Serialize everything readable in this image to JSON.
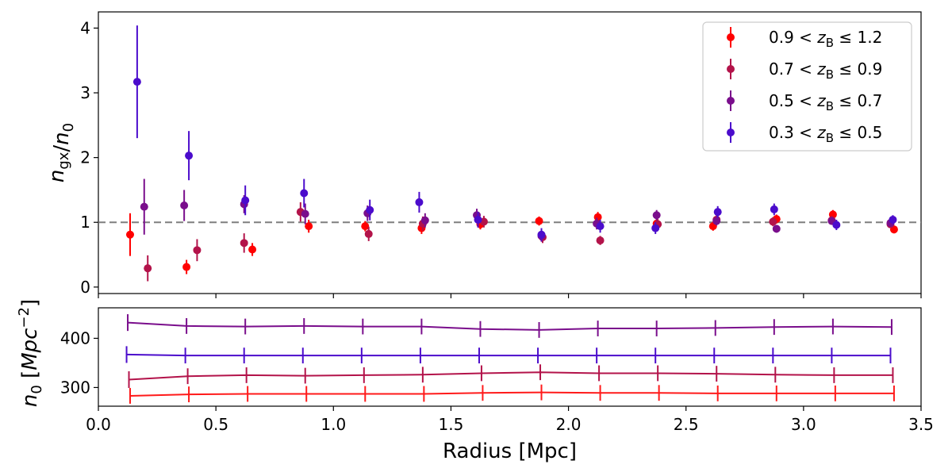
{
  "chart_data": [
    {
      "type": "scatter",
      "panel": "top",
      "title": "",
      "ylabel": "n_gx/n_0",
      "xlim": [
        0.0,
        3.5
      ],
      "ylim": [
        -0.1,
        4.25
      ],
      "yticks": [
        0,
        1,
        2,
        3,
        4
      ],
      "reference_line": {
        "y": 1.0,
        "style": "dashed",
        "color": "#7f7f7f"
      },
      "legend_placement": "top-right",
      "grid": false,
      "series": [
        {
          "name": "0.9 < zB ≤ 1.2",
          "legend": {
            "pre": "0.9 < ",
            "var": "z",
            "sub": "B",
            "post": " ≤ 1.2"
          },
          "color": "#ff0000",
          "x": [
            0.135,
            0.375,
            0.655,
            0.895,
            1.135,
            1.375,
            1.625,
            1.875,
            2.125,
            2.375,
            2.615,
            2.885,
            3.125,
            3.385
          ],
          "y": [
            0.81,
            0.31,
            0.58,
            0.94,
            0.94,
            0.91,
            0.97,
            1.02,
            1.08,
            0.98,
            0.94,
            1.05,
            1.12,
            0.89
          ],
          "err": [
            0.33,
            0.11,
            0.1,
            0.1,
            0.08,
            0.09,
            0.08,
            0.07,
            0.08,
            0.07,
            0.07,
            0.07,
            0.07,
            0.06
          ]
        },
        {
          "name": "0.7 < zB ≤ 0.9",
          "legend": {
            "pre": "0.7 < ",
            "var": "z",
            "sub": "B",
            "post": " ≤ 0.9"
          },
          "color": "#b3134a",
          "x": [
            0.21,
            0.42,
            0.62,
            0.86,
            1.15,
            1.38,
            1.64,
            1.89,
            2.135,
            2.38,
            2.63,
            2.87,
            3.12,
            3.37
          ],
          "y": [
            0.29,
            0.57,
            0.68,
            1.16,
            0.82,
            0.98,
            1.01,
            0.77,
            0.72,
            0.97,
            1.04,
            1.01,
            1.03,
            0.97
          ],
          "err": [
            0.2,
            0.17,
            0.15,
            0.15,
            0.11,
            0.11,
            0.09,
            0.09,
            0.07,
            0.08,
            0.07,
            0.07,
            0.07,
            0.06
          ]
        },
        {
          "name": "0.5 < zB ≤ 0.7",
          "legend": {
            "pre": "0.5 < ",
            "var": "z",
            "sub": "B",
            "post": " ≤ 0.7"
          },
          "color": "#7a0e8c",
          "x": [
            0.195,
            0.365,
            0.62,
            0.88,
            1.145,
            1.39,
            1.61,
            1.885,
            2.12,
            2.375,
            2.63,
            2.885,
            3.12,
            3.37
          ],
          "y": [
            1.24,
            1.26,
            1.28,
            1.13,
            1.14,
            1.03,
            1.11,
            0.79,
            0.98,
            1.11,
            1.02,
            0.9,
            1.02,
            0.99
          ],
          "err": [
            0.43,
            0.24,
            0.14,
            0.16,
            0.12,
            0.11,
            0.1,
            0.09,
            0.09,
            0.08,
            0.07,
            0.06,
            0.06,
            0.06
          ]
        },
        {
          "name": "0.3 < zB ≤ 0.5",
          "legend": {
            "pre": "0.3 < ",
            "var": "z",
            "sub": "B",
            "post": " ≤ 0.5"
          },
          "color": "#4b0ccc",
          "x": [
            0.165,
            0.385,
            0.625,
            0.875,
            1.155,
            1.365,
            1.615,
            1.885,
            2.135,
            2.37,
            2.635,
            2.875,
            3.14,
            3.38
          ],
          "y": [
            3.17,
            2.03,
            1.34,
            1.45,
            1.19,
            1.31,
            1.04,
            0.81,
            0.94,
            0.91,
            1.16,
            1.2,
            0.96,
            1.04
          ],
          "err": [
            0.87,
            0.38,
            0.23,
            0.22,
            0.16,
            0.16,
            0.12,
            0.1,
            0.1,
            0.09,
            0.09,
            0.09,
            0.08,
            0.07
          ]
        }
      ]
    },
    {
      "type": "line",
      "panel": "bottom",
      "title": "",
      "xlabel": "Radius [Mpc]",
      "ylabel": "n_0 [Mpc^-2]",
      "xlim": [
        0.0,
        3.5
      ],
      "ylim": [
        262,
        462
      ],
      "xticks": [
        "0.0",
        "0.5",
        "1.0",
        "1.5",
        "2.0",
        "2.5",
        "3.0",
        "3.5"
      ],
      "yticks": [
        300,
        400
      ],
      "grid": false,
      "series": [
        {
          "name": "0.5 < zB ≤ 0.7",
          "color": "#7a0e8c",
          "x": [
            0.125,
            0.375,
            0.625,
            0.875,
            1.125,
            1.375,
            1.625,
            1.875,
            2.125,
            2.375,
            2.625,
            2.875,
            3.125,
            3.375
          ],
          "values": [
            432,
            425,
            424,
            425,
            424,
            424,
            419,
            417,
            420,
            420,
            421,
            423,
            424,
            423
          ],
          "err": [
            17,
            16,
            16,
            16,
            16,
            16,
            16,
            16,
            16,
            16,
            16,
            16,
            16,
            16
          ]
        },
        {
          "name": "0.3 < zB ≤ 0.5",
          "color": "#4b0ccc",
          "x": [
            0.12,
            0.37,
            0.62,
            0.87,
            1.12,
            1.37,
            1.62,
            1.87,
            2.12,
            2.37,
            2.62,
            2.87,
            3.12,
            3.37
          ],
          "values": [
            367,
            365,
            365,
            365,
            365,
            365,
            365,
            365,
            365,
            365,
            365,
            365,
            365,
            365
          ],
          "err": [
            17,
            16,
            16,
            16,
            16,
            16,
            16,
            16,
            16,
            16,
            16,
            16,
            16,
            16
          ]
        },
        {
          "name": "0.7 < zB ≤ 0.9",
          "color": "#b3134a",
          "x": [
            0.13,
            0.38,
            0.63,
            0.88,
            1.13,
            1.38,
            1.63,
            1.88,
            2.13,
            2.38,
            2.63,
            2.88,
            3.13,
            3.38
          ],
          "values": [
            316,
            323,
            325,
            324,
            325,
            326,
            329,
            331,
            329,
            329,
            328,
            326,
            325,
            325
          ],
          "err": [
            17,
            16,
            16,
            16,
            16,
            16,
            16,
            16,
            16,
            16,
            16,
            16,
            16,
            16
          ]
        },
        {
          "name": "0.9 < zB ≤ 1.2",
          "color": "#ff1a1a",
          "x": [
            0.135,
            0.385,
            0.635,
            0.885,
            1.135,
            1.385,
            1.635,
            1.885,
            2.135,
            2.385,
            2.635,
            2.885,
            3.135,
            3.385
          ],
          "values": [
            283,
            286,
            287,
            287,
            287,
            287,
            289,
            290,
            289,
            289,
            288,
            288,
            288,
            288
          ],
          "err": [
            16,
            16,
            16,
            16,
            16,
            16,
            16,
            16,
            16,
            16,
            16,
            16,
            16,
            16
          ]
        }
      ]
    }
  ]
}
